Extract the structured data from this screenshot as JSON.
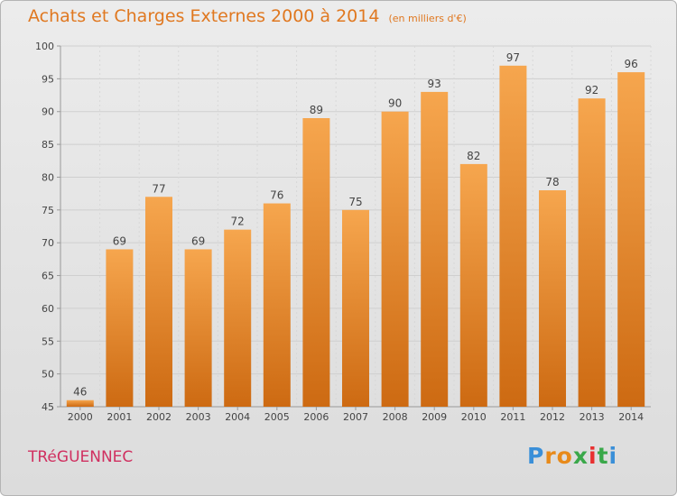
{
  "title": "Achats et Charges Externes 2000 à 2014",
  "unit_note": "(en milliers d'€)",
  "town": "TRéGUENNEC",
  "logo": {
    "letters": [
      "P",
      "r",
      "o",
      "x",
      "i",
      "t",
      "i"
    ],
    "colors": [
      "#3a8fd8",
      "#e88a1a",
      "#e88a1a",
      "#3aa84a",
      "#e83030",
      "#3aa84a",
      "#3a8fd8"
    ]
  },
  "chart_data": {
    "type": "bar",
    "categories": [
      "2000",
      "2001",
      "2002",
      "2003",
      "2004",
      "2005",
      "2006",
      "2007",
      "2008",
      "2009",
      "2010",
      "2011",
      "2012",
      "2013",
      "2014"
    ],
    "values": [
      46,
      69,
      77,
      69,
      72,
      76,
      89,
      75,
      90,
      93,
      82,
      97,
      78,
      92,
      96
    ],
    "ylim": [
      45,
      100
    ],
    "yticks": [
      45,
      50,
      55,
      60,
      65,
      70,
      75,
      80,
      85,
      90,
      95,
      100
    ],
    "grid": true,
    "bar_color": "#f08a28"
  }
}
